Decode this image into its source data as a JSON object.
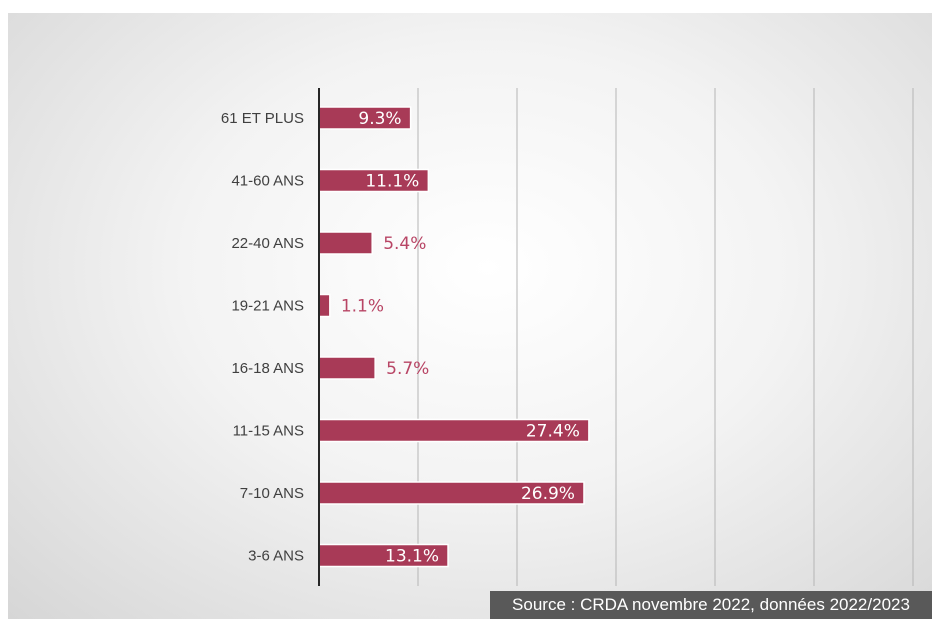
{
  "chart_data": {
    "type": "bar",
    "orientation": "horizontal",
    "categories": [
      "61 ET PLUS",
      "41-60 ANS",
      "22-40 ANS",
      "19-21 ANS",
      "16-18 ANS",
      "11-15 ANS",
      "7-10 ANS",
      "3-6 ANS"
    ],
    "values": [
      9.3,
      11.1,
      5.4,
      1.1,
      5.7,
      27.4,
      26.9,
      13.1
    ],
    "value_labels": [
      "9.3%",
      "11.1%",
      "5.4%",
      "1.1%",
      "5.7%",
      "27.4%",
      "26.9%",
      "13.1%"
    ],
    "xlim": [
      0,
      30
    ],
    "grid": true,
    "bar_color": "#a83a57",
    "small_label_color": "#b84565",
    "label_color": "#ffffff"
  },
  "source_text": "Source : CRDA novembre 2022, données 2022/2023"
}
